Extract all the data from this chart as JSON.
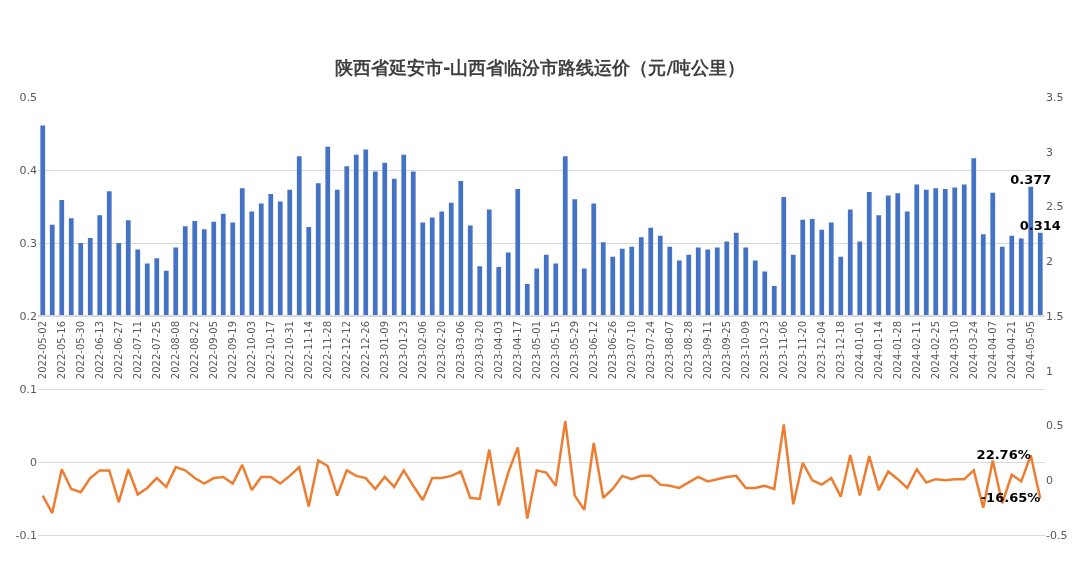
{
  "chart_data": [
    {
      "type": "bar",
      "title": "陕西省延安市-山西省临汾市路线运价（元/吨公里）",
      "categories": [
        "2022-05-02",
        null,
        "2022-05-16",
        null,
        "2022-05-30",
        null,
        "2022-06-13",
        null,
        "2022-06-27",
        null,
        "2022-07-11",
        null,
        "2022-07-25",
        null,
        "2022-08-08",
        null,
        "2022-08-22",
        null,
        "2022-09-05",
        null,
        "2022-09-19",
        null,
        "2022-10-03",
        null,
        "2022-10-17",
        null,
        "2022-10-31",
        null,
        "2022-11-14",
        null,
        "2022-11-28",
        null,
        "2022-12-12",
        null,
        "2022-12-26",
        null,
        "2023-01-09",
        null,
        "2023-01-23",
        null,
        "2023-02-06",
        null,
        "2023-02-20",
        null,
        "2023-03-06",
        null,
        "2023-03-20",
        null,
        "2023-04-03",
        null,
        "2023-04-17",
        null,
        "2023-05-01",
        null,
        "2023-05-15",
        null,
        "2023-05-29",
        null,
        "2023-06-12",
        null,
        "2023-06-26",
        null,
        "2023-07-10",
        null,
        "2023-07-24",
        null,
        "2023-08-07",
        null,
        "2023-08-28",
        null,
        "2023-09-11",
        null,
        "2023-09-25",
        null,
        "2023-10-09",
        null,
        "2023-10-23",
        null,
        "2023-11-06",
        null,
        "2023-11-20",
        null,
        "2023-12-04",
        null,
        "2023-12-18",
        null,
        "2024-01-01",
        null,
        "2024-01-14",
        null,
        "2024-01-28",
        null,
        "2024-02-11",
        null,
        "2024-02-25",
        null,
        "2024-03-10",
        null,
        "2024-03-24",
        null,
        "2024-04-07",
        null,
        "2024-04-21",
        null,
        "2024-05-05",
        null
      ],
      "values": [
        0.461,
        0.325,
        0.359,
        0.334,
        0.3,
        0.307,
        0.338,
        0.371,
        0.3,
        0.331,
        0.291,
        0.272,
        0.279,
        0.262,
        0.294,
        0.323,
        0.33,
        0.319,
        0.329,
        0.34,
        0.328,
        0.375,
        0.343,
        0.354,
        0.367,
        0.357,
        0.373,
        0.419,
        0.322,
        0.382,
        0.432,
        0.373,
        0.405,
        0.421,
        0.428,
        0.398,
        0.41,
        0.388,
        0.421,
        0.398,
        0.328,
        0.335,
        0.343,
        0.355,
        0.385,
        0.324,
        0.268,
        0.346,
        0.267,
        0.287,
        0.374,
        0.244,
        0.265,
        0.284,
        0.272,
        0.419,
        0.36,
        0.265,
        0.354,
        0.301,
        0.281,
        0.292,
        0.295,
        0.308,
        0.321,
        0.31,
        0.295,
        0.276,
        0.284,
        0.294,
        0.291,
        0.294,
        0.302,
        0.314,
        0.294,
        0.276,
        0.261,
        0.241,
        0.363,
        0.284,
        0.332,
        0.333,
        0.318,
        0.328,
        0.281,
        0.346,
        0.302,
        0.37,
        0.338,
        0.365,
        0.368,
        0.343,
        0.38,
        0.373,
        0.375,
        0.374,
        0.376,
        0.38,
        0.416,
        0.312,
        0.369,
        0.295,
        0.31,
        0.306,
        0.377,
        0.314
      ],
      "value_labels": [
        null,
        null,
        null,
        null,
        null,
        null,
        null,
        null,
        null,
        null,
        null,
        null,
        null,
        null,
        null,
        null,
        null,
        null,
        null,
        null,
        null,
        null,
        null,
        null,
        null,
        null,
        null,
        null,
        null,
        null,
        null,
        null,
        null,
        null,
        null,
        null,
        null,
        null,
        null,
        null,
        null,
        null,
        null,
        null,
        null,
        null,
        null,
        null,
        null,
        null,
        null,
        null,
        null,
        null,
        null,
        null,
        null,
        null,
        null,
        null,
        null,
        null,
        null,
        null,
        null,
        null,
        null,
        null,
        null,
        null,
        null,
        null,
        null,
        null,
        null,
        null,
        null,
        null,
        null,
        null,
        null,
        null,
        null,
        null,
        null,
        null,
        null,
        null,
        null,
        null,
        null,
        null,
        null,
        null,
        null,
        null,
        null,
        null,
        null,
        null,
        null,
        null,
        null,
        null,
        "0.377",
        "0.314"
      ],
      "color": "#4472c4",
      "ylim": [
        0.2,
        0.5
      ],
      "yticks": [
        0.2,
        0.3,
        0.4,
        0.5
      ],
      "y2lim": [
        1.5,
        3.5
      ],
      "y2ticks": [
        1.5,
        2,
        2.5,
        3,
        3.5
      ],
      "grid": "y"
    },
    {
      "type": "line",
      "categories": [
        null,
        null,
        null,
        null,
        null,
        null,
        null,
        null,
        null,
        null,
        null,
        null,
        null,
        null,
        null,
        null,
        null,
        null,
        null,
        null,
        null,
        null,
        null,
        null,
        null,
        null,
        null,
        null,
        null,
        null,
        null,
        null,
        null,
        null,
        null,
        null,
        null,
        null,
        null,
        null,
        null,
        null,
        null,
        null,
        null,
        null,
        null,
        null,
        null,
        null,
        null,
        null,
        null,
        null,
        null,
        null,
        null,
        null,
        null,
        null,
        null,
        null,
        null,
        null,
        null,
        null,
        null,
        null,
        null,
        null,
        null,
        null,
        null,
        null,
        null,
        null,
        null,
        null,
        null,
        null,
        null,
        null,
        null,
        null,
        null,
        null,
        null,
        null,
        null,
        null,
        null,
        null,
        null,
        null,
        null,
        null,
        null,
        null,
        null,
        null,
        null,
        null,
        null,
        null,
        null,
        null
      ],
      "series": [
        {
          "color": "#ed7d31",
          "axis": "y2",
          "values": [
            -0.14,
            -0.3,
            0.1,
            -0.08,
            -0.11,
            0.02,
            0.09,
            0.09,
            -0.2,
            0.1,
            -0.13,
            -0.07,
            0.02,
            -0.06,
            0.12,
            0.09,
            0.02,
            -0.03,
            0.02,
            0.03,
            -0.03,
            0.14,
            -0.09,
            0.03,
            0.03,
            -0.03,
            0.04,
            0.12,
            -0.24,
            0.18,
            0.13,
            -0.14,
            0.09,
            0.04,
            0.02,
            -0.08,
            0.03,
            -0.06,
            0.09,
            -0.05,
            -0.18,
            0.02,
            0.02,
            0.04,
            0.08,
            -0.16,
            -0.17,
            0.28,
            -0.23,
            0.07,
            0.3,
            -0.35,
            0.09,
            0.07,
            -0.05,
            0.54,
            -0.14,
            -0.27,
            0.34,
            -0.16,
            -0.08,
            0.04,
            0.01,
            0.04,
            0.04,
            -0.04,
            -0.05,
            -0.07,
            -0.02,
            0.03,
            -0.01,
            0.01,
            0.03,
            0.04,
            -0.07,
            -0.07,
            -0.05,
            -0.08,
            0.51,
            -0.22,
            0.16,
            0,
            -0.04,
            0.02,
            -0.15,
            0.23,
            -0.14,
            0.22,
            -0.09,
            0.08,
            0.01,
            -0.07,
            0.1,
            -0.02,
            0.01,
            0,
            0.01,
            0.01,
            0.09,
            -0.25,
            0.18,
            -0.21,
            0.05,
            -0.01,
            0.2276,
            -0.1665
          ],
          "value_labels": [
            null,
            null,
            null,
            null,
            null,
            null,
            null,
            null,
            null,
            null,
            null,
            null,
            null,
            null,
            null,
            null,
            null,
            null,
            null,
            null,
            null,
            null,
            null,
            null,
            null,
            null,
            null,
            null,
            null,
            null,
            null,
            null,
            null,
            null,
            null,
            null,
            null,
            null,
            null,
            null,
            null,
            null,
            null,
            null,
            null,
            null,
            null,
            null,
            null,
            null,
            null,
            null,
            null,
            null,
            null,
            null,
            null,
            null,
            null,
            null,
            null,
            null,
            null,
            null,
            null,
            null,
            null,
            null,
            null,
            null,
            null,
            null,
            null,
            null,
            null,
            null,
            null,
            null,
            null,
            null,
            null,
            null,
            null,
            null,
            null,
            null,
            null,
            null,
            null,
            null,
            null,
            null,
            null,
            null,
            null,
            null,
            null,
            null,
            null,
            null,
            null,
            null,
            null,
            null,
            "22.76%",
            "-16.65%"
          ]
        }
      ],
      "ylim": [
        -0.1,
        0.2
      ],
      "yticks": [
        -0.1,
        0,
        0.1
      ],
      "y2lim": [
        -0.5,
        1.5
      ],
      "y2ticks": [
        -0.5,
        0,
        0.5,
        1
      ],
      "grid": "y",
      "tick_labels": "y"
    }
  ]
}
